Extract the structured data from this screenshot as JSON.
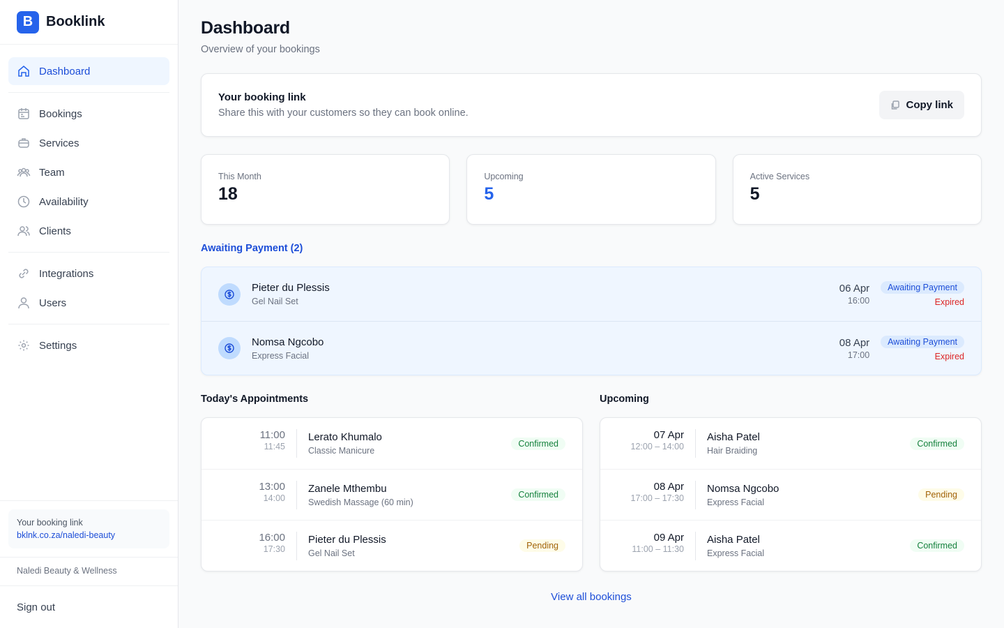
{
  "sidebar": {
    "logo": "B",
    "brand": "Booklink",
    "nav": [
      [
        "Dashboard"
      ],
      [
        "Bookings",
        "Services",
        "Team",
        "Availability",
        "Clients"
      ],
      [
        "Integrations",
        "Users"
      ],
      [
        "Settings"
      ]
    ],
    "booking_link": {
      "label": "Your booking link",
      "url": "bklnk.co.za/naledi-beauty"
    },
    "business": "Naledi Beauty & Wellness",
    "sign_out": "Sign out"
  },
  "header": {
    "title": "Dashboard",
    "subtitle": "Overview of your bookings"
  },
  "link_card": {
    "title": "Your booking link",
    "text": "Share this with your customers so they can book online.",
    "button": "Copy link"
  },
  "stats": [
    {
      "label": "This Month",
      "value": 18,
      "color": "#111827"
    },
    {
      "label": "Upcoming",
      "value": 5,
      "color": "#2563eb"
    },
    {
      "label": "Active Services",
      "value": 5,
      "color": "#111827"
    }
  ],
  "awaiting": {
    "title": "Awaiting Payment (2)",
    "items": [
      {
        "name": "Pieter du Plessis",
        "service": "Gel Nail Set",
        "date": "06 Apr",
        "time": "16:00",
        "badge": "Awaiting Payment",
        "status": "Expired"
      },
      {
        "name": "Nomsa Ngcobo",
        "service": "Express Facial",
        "date": "08 Apr",
        "time": "17:00",
        "badge": "Awaiting Payment",
        "status": "Expired"
      }
    ]
  },
  "today": {
    "title": "Today's Appointments",
    "items": [
      {
        "when": "11:00",
        "sub": "11:45",
        "name": "Lerato Khumalo",
        "service": "Classic Manicure",
        "status": {
          "label": "Confirmed",
          "color": "green"
        }
      },
      {
        "when": "13:00",
        "sub": "14:00",
        "name": "Zanele Mthembu",
        "service": "Swedish Massage (60 min)",
        "status": {
          "label": "Confirmed",
          "color": "green"
        }
      },
      {
        "when": "16:00",
        "sub": "17:30",
        "name": "Pieter du Plessis",
        "service": "Gel Nail Set",
        "status": {
          "label": "Pending",
          "color": "amber"
        }
      }
    ]
  },
  "upcoming": {
    "title": "Upcoming",
    "items": [
      {
        "when": "07 Apr",
        "sub": "12:00 – 14:00",
        "name": "Aisha Patel",
        "service": "Hair Braiding",
        "status": {
          "label": "Confirmed",
          "color": "green"
        }
      },
      {
        "when": "08 Apr",
        "sub": "17:00 – 17:30",
        "name": "Nomsa Ngcobo",
        "service": "Express Facial",
        "status": {
          "label": "Pending",
          "color": "amber"
        }
      },
      {
        "when": "09 Apr",
        "sub": "11:00 – 11:30",
        "name": "Aisha Patel",
        "service": "Express Facial",
        "status": {
          "label": "Confirmed",
          "color": "green"
        }
      }
    ]
  },
  "view_all": "View all bookings"
}
